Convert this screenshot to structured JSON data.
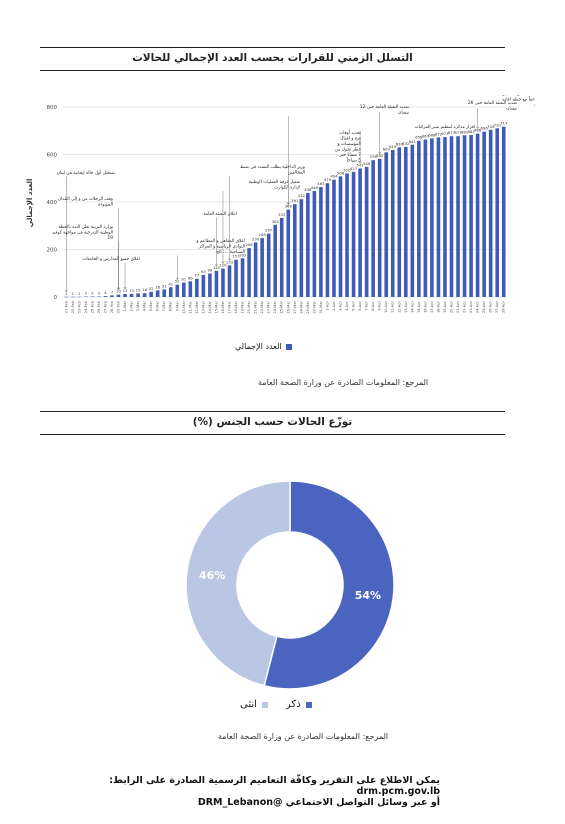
{
  "section1": {
    "title": "التسلل الزمني للقرارات بحسب العدد الإجمالي للحالات",
    "source": "المرجع: المعلومات الصادرة عن وزارة الصحة العامة",
    "legend_label": "العدد الإجمالي"
  },
  "section2": {
    "title": "توزّع الحالات حسب الجنس (%)",
    "source": "المرجع: المعلومات الصادرة عن وزارة الصحة العامة"
  },
  "footer": {
    "line1": "يمكن الاطلاع على التقرير وكافّة التعاميم الرسمية الصادرة على الرابط: drm.pcm.gov.lb",
    "line2": "أو عبر وسائل التواصل الاجتماعي @DRM_Lebanon"
  },
  "colors": {
    "bar": "#3f5bb8",
    "male": "#4a64c0",
    "female": "#b9c7e4"
  },
  "chart_data": [
    {
      "type": "bar",
      "title": "التسلل الزمني للقرارات بحسب العدد الإجمالي للحالات",
      "ylabel": "العدد الإجمالي",
      "ylim": [
        0,
        800
      ],
      "yticks": [
        0,
        200,
        400,
        600,
        800
      ],
      "grid": true,
      "legend": "bottom",
      "categories": [
        "21-Feb",
        "22-Feb",
        "23-Feb",
        "24-Feb",
        "25-Feb",
        "26-Feb",
        "27-Feb",
        "28-Feb",
        "29-Feb",
        "1-Mar",
        "2-Mar",
        "3-Mar",
        "4-Mar",
        "5-Mar",
        "6-Mar",
        "7-Mar",
        "8-Mar",
        "9-Mar",
        "10-Mar",
        "11-Mar",
        "12-Mar",
        "13-Mar",
        "14-Mar",
        "15-Mar",
        "16-Mar",
        "17-Mar",
        "18-Mar",
        "19-Mar",
        "20-Mar",
        "21-Mar",
        "22-Mar",
        "23-Mar",
        "24-Mar",
        "25-Mar",
        "26-Mar",
        "27-Mar",
        "28-Mar",
        "29-Mar",
        "30-Mar",
        "31-Mar",
        "1-Apr",
        "2-Apr",
        "3-Apr",
        "4-Apr",
        "5-Apr",
        "6-Apr",
        "7-Apr",
        "8-Apr",
        "9-Apr",
        "10-Apr",
        "11-Apr",
        "12-Apr",
        "13-Apr",
        "14-Apr",
        "15-Apr",
        "16-Apr",
        "17-Apr",
        "18-Apr",
        "19-Apr",
        "20-Apr",
        "21-Apr",
        "22-Apr",
        "23-Apr",
        "24-Apr",
        "25-Apr",
        "26-Apr",
        "27-Apr",
        "28-Apr"
      ],
      "series": [
        {
          "name": "العدد الإجمالي",
          "values": [
            1,
            1,
            1,
            2,
            2,
            2,
            4,
            7,
            10,
            13,
            13,
            15,
            16,
            22,
            28,
            32,
            41,
            52,
            61,
            66,
            77,
            93,
            99,
            110,
            120,
            133,
            157,
            163,
            206,
            230,
            248,
            267,
            304,
            333,
            368,
            391,
            412,
            438,
            446,
            463,
            479,
            494,
            508,
            520,
            527,
            541,
            548,
            576,
            582,
            609,
            619,
            630,
            632,
            641,
            658,
            663,
            668,
            672,
            673,
            677,
            677,
            681,
            682,
            688,
            696,
            704,
            710,
            717
          ]
        }
      ],
      "annotations": [
        {
          "category": "21-Feb",
          "text": "تسجيل أول حالة إيجابية في لبنان"
        },
        {
          "category": "29-Feb",
          "text": "وقف الرحلات من و إلى البلدان الموبوءة"
        },
        {
          "category": "29-Feb",
          "text": "وزارة التربية تعلن البدء بالخطة الوطنية التدرجية في مواجهة كوفيد 19"
        },
        {
          "category": "1-Mar",
          "text": "اغلاق جميع المدارس و الجامعات"
        },
        {
          "category": "9-Mar",
          "text": "اغلاق المقاهي و المطاعم و النوادي الرياضية و المراكز السياحية .... الخ"
        },
        {
          "category": "15-Mar",
          "text": "اعلان التعبئة العامة"
        },
        {
          "category": "16-Mar",
          "text": "تفعيل غرفة العمليات الوطنية لإدارة الكوارث"
        },
        {
          "category": "17-Mar",
          "text": "وزير الداخلية يطلب التشدد في ضبط المخالفين"
        },
        {
          "category": "26-Mar",
          "text": "تحديد أوقات فتح و اقفال المؤسسات و حظر تجول من 7 مساءً حتى 5 صباحاً"
        },
        {
          "category": "26-Mar",
          "text": "تمديد التعبئة العامة حتى 12 نيسان"
        },
        {
          "category": "6-Apr",
          "text": "اقرار مذكرة لتنظيم سير المركبات"
        },
        {
          "category": "9-Apr",
          "text": "تمديد التعبئة العامة حتى 26 نيسان"
        },
        {
          "category": "24-Apr",
          "text": "تمديد التعبئة العامة حتى 10 أيار التي تترافق لاحقاً مع خطة اعادة فتح القطاعات"
        }
      ]
    },
    {
      "type": "pie",
      "title": "توزّع الحالات حسب الجنس (%)",
      "donut": true,
      "legend": "bottom",
      "slices": [
        {
          "label": "ذكر",
          "value": 54,
          "display": "54%"
        },
        {
          "label": "انثى",
          "value": 46,
          "display": "46%"
        }
      ]
    }
  ]
}
